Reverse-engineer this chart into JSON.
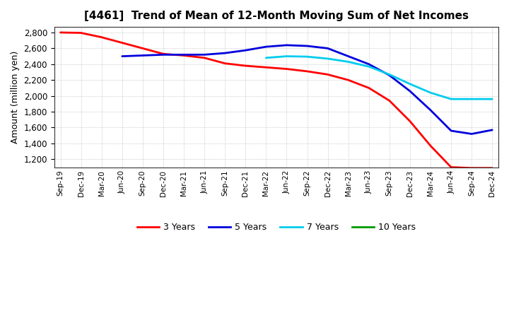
{
  "title": "[4461]  Trend of Mean of 12-Month Moving Sum of Net Incomes",
  "ylabel": "Amount (million yen)",
  "background_color": "#ffffff",
  "grid_color": "#999999",
  "x_labels": [
    "Sep-19",
    "Dec-19",
    "Mar-20",
    "Jun-20",
    "Sep-20",
    "Dec-20",
    "Mar-21",
    "Jun-21",
    "Sep-21",
    "Dec-21",
    "Mar-22",
    "Jun-22",
    "Sep-22",
    "Dec-22",
    "Mar-23",
    "Jun-23",
    "Sep-23",
    "Dec-23",
    "Mar-24",
    "Jun-24",
    "Sep-24",
    "Dec-24"
  ],
  "series": {
    "3 Years": {
      "color": "#ff0000",
      "data_x": [
        0,
        1,
        2,
        3,
        4,
        5,
        6,
        7,
        8,
        9,
        10,
        11,
        12,
        13,
        14,
        15,
        16,
        17,
        18,
        19,
        20,
        21
      ],
      "data_y": [
        2800,
        2795,
        2740,
        2670,
        2600,
        2530,
        2510,
        2480,
        2410,
        2380,
        2360,
        2340,
        2310,
        2270,
        2200,
        2100,
        1940,
        1680,
        1370,
        1100,
        1090,
        1090
      ]
    },
    "5 Years": {
      "color": "#0000dd",
      "data_x": [
        3,
        4,
        5,
        6,
        7,
        8,
        9,
        10,
        11,
        12,
        13,
        14,
        15,
        16,
        17,
        18,
        19,
        20,
        21
      ],
      "data_y": [
        2500,
        2510,
        2520,
        2520,
        2520,
        2540,
        2575,
        2620,
        2640,
        2630,
        2600,
        2500,
        2400,
        2260,
        2060,
        1820,
        1560,
        1520,
        1570
      ]
    },
    "7 Years": {
      "color": "#00ccee",
      "data_x": [
        10,
        11,
        12,
        13,
        14,
        15,
        16,
        17,
        18,
        19,
        20,
        21
      ],
      "data_y": [
        2480,
        2500,
        2495,
        2470,
        2430,
        2370,
        2270,
        2150,
        2040,
        1960,
        1960,
        1960
      ]
    }
  },
  "ylim": [
    1100,
    2870
  ],
  "yticks": [
    1200,
    1400,
    1600,
    1800,
    2000,
    2200,
    2400,
    2600,
    2800
  ],
  "legend_labels": [
    "3 Years",
    "5 Years",
    "7 Years",
    "10 Years"
  ],
  "legend_colors": [
    "#ff0000",
    "#0000dd",
    "#00ccee",
    "#009900"
  ]
}
